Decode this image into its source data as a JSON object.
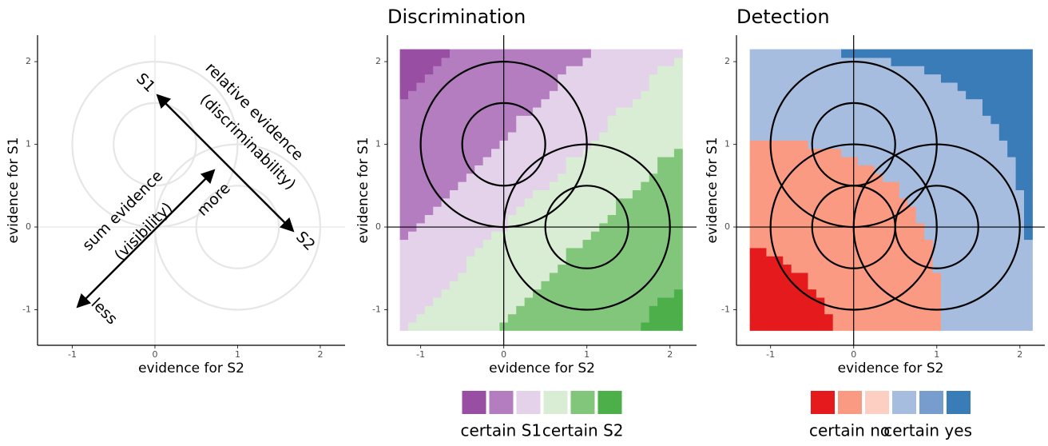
{
  "chart_data": [
    {
      "type": "annotated",
      "x_label": "evidence for S2",
      "y_label": "evidence for S1",
      "xlim": [
        -1.42,
        2.3
      ],
      "ylim": [
        -1.43,
        2.32
      ],
      "xticks": [
        -1,
        0,
        1,
        2
      ],
      "yticks": [
        -1,
        0,
        1,
        2
      ],
      "zero_line_color": "#e3e3e3",
      "circle_color": "#e6e6e6",
      "circles": [
        {
          "cx": 0,
          "cy": 1,
          "r": 1
        },
        {
          "cx": 0,
          "cy": 1,
          "r": 0.5
        },
        {
          "cx": 1,
          "cy": 0,
          "r": 1
        },
        {
          "cx": 1,
          "cy": 0,
          "r": 0.5
        }
      ],
      "annotations": [
        "S1",
        "S2",
        "relative evidence",
        "(discriminability)",
        "sum evidence",
        "(visibility)",
        "more",
        "less"
      ]
    },
    {
      "type": "heatmap",
      "title": "Discrimination",
      "x_label": "evidence for S2",
      "y_label": "evidence for S1",
      "xlim": [
        -1.4,
        2.32
      ],
      "ylim": [
        -1.43,
        2.32
      ],
      "xticks": [
        -1,
        0,
        1,
        2
      ],
      "yticks": [
        -1,
        0,
        1,
        2
      ],
      "zero_line_color": "#000000",
      "circle_color": "#000000",
      "circles": [
        {
          "cx": 0,
          "cy": 1,
          "r": 1
        },
        {
          "cx": 0,
          "cy": 1,
          "r": 0.5
        },
        {
          "cx": 1,
          "cy": 0,
          "r": 1
        },
        {
          "cx": 1,
          "cy": 0,
          "r": 0.5
        }
      ],
      "grid_range": [
        -1.25,
        2.15
      ],
      "cell_size": 0.1,
      "boundaries": [
        -2.8,
        -1.1,
        0,
        1.1,
        2.8
      ],
      "colors": [
        "#984ea3",
        "#b37dbf",
        "#e3d2e9",
        "#d8edd3",
        "#82c67b",
        "#4daf4a"
      ],
      "legend_labels": [
        "certain S1",
        "certain S2"
      ]
    },
    {
      "type": "heatmap",
      "title": "Detection",
      "x_label": "evidence for S2",
      "y_label": "evidence for S1",
      "xlim": [
        -1.41,
        2.3
      ],
      "ylim": [
        -1.43,
        2.32
      ],
      "xticks": [
        -1,
        0,
        1,
        2
      ],
      "yticks": [
        -1,
        0,
        1,
        2
      ],
      "zero_line_color": "#000000",
      "circle_color": "#000000",
      "circles": [
        {
          "cx": 0,
          "cy": 1,
          "r": 1
        },
        {
          "cx": 0,
          "cy": 1,
          "r": 0.5
        },
        {
          "cx": 1,
          "cy": 0,
          "r": 1
        },
        {
          "cx": 1,
          "cy": 0,
          "r": 0.5
        },
        {
          "cx": 0,
          "cy": 0,
          "r": 1
        },
        {
          "cx": 0,
          "cy": 0,
          "r": 0.5
        }
      ],
      "grid_range": [
        -1.25,
        2.15
      ],
      "cell_size": 0.1,
      "boundaries": [
        1.1,
        3.3,
        3.3,
        9,
        9
      ],
      "colors": [
        "#e41a1c",
        "#fb9a82",
        "#fdcfc3",
        "#a6bddf",
        "#779dcf",
        "#3a7cb8"
      ],
      "legend_labels": [
        "certain no",
        "certain yes"
      ]
    }
  ]
}
